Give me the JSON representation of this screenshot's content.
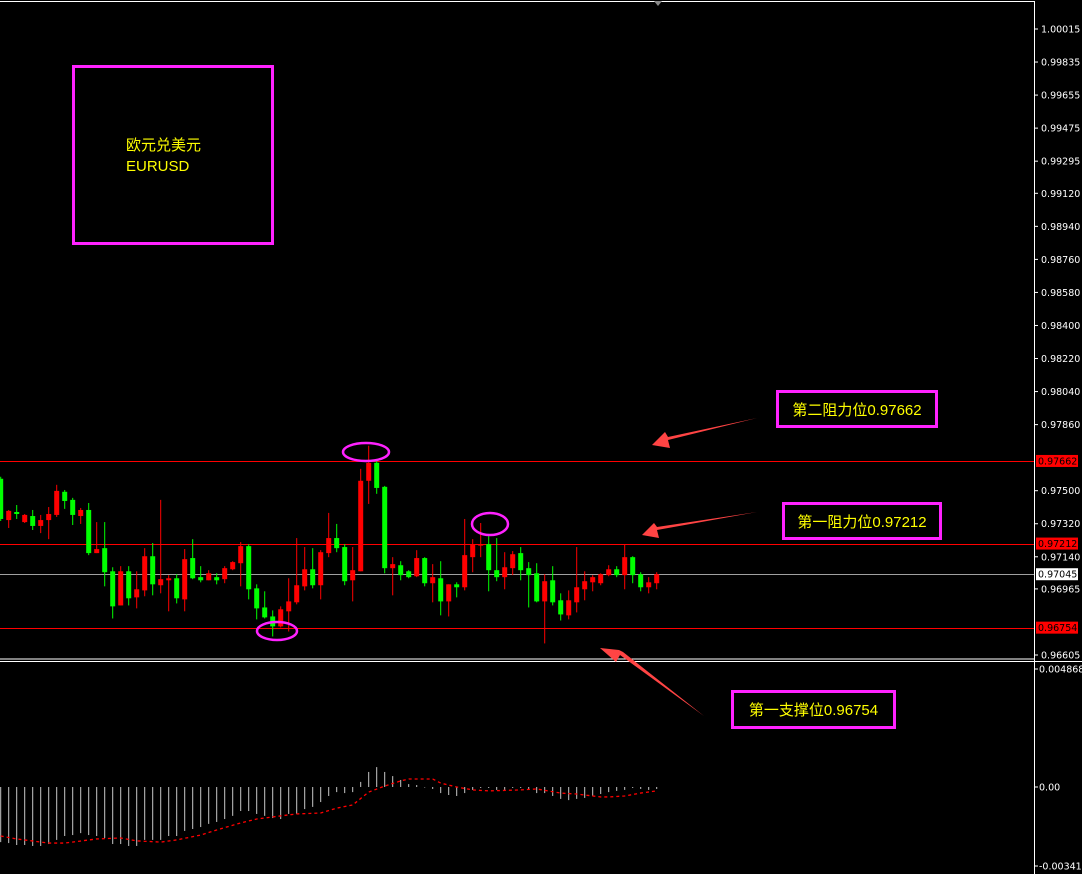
{
  "title_box": {
    "name_cn": "欧元兑美元",
    "symbol": "EURUSD"
  },
  "annotations": {
    "resistance2": "第二阻力位0.97662",
    "resistance1": "第一阻力位0.97212",
    "support1": "第一支撑位0.96754"
  },
  "colors": {
    "background": "#000000",
    "bull": "#ff0000",
    "bear": "#00ff00",
    "level_line": "#ff0000",
    "current_line": "#a0a0a0",
    "annotation_border": "#ff22ff",
    "annotation_text": "#ffff00",
    "arrow": "#ff4444",
    "histogram": "#c8c8c8",
    "signal": "#ff0000"
  },
  "chart_data": [
    {
      "type": "candlestick",
      "symbol": "EURUSD",
      "y_ticks": [
        "1.00015",
        "0.99835",
        "0.99655",
        "0.99475",
        "0.99295",
        "0.99120",
        "0.98940",
        "0.98760",
        "0.98580",
        "0.98400",
        "0.98220",
        "0.98040",
        "0.97860",
        "0.97500",
        "0.97320",
        "0.97140",
        "0.96965",
        "0.96605"
      ],
      "ylim": [
        0.96605,
        1.00015
      ],
      "levels": [
        {
          "label": "0.97662",
          "price": 0.97662,
          "kind": "resistance"
        },
        {
          "label": "0.97212",
          "price": 0.97212,
          "kind": "resistance"
        },
        {
          "label": "0.96754",
          "price": 0.96754,
          "kind": "support"
        }
      ],
      "current_price": {
        "label": "0.97045",
        "price": 0.97045
      },
      "highlighted_bars": [
        47,
        35,
        62
      ],
      "candles_ohlc": [
        [
          0.97565,
          0.97576,
          0.97335,
          0.97346
        ],
        [
          0.9734,
          0.97395,
          0.97297,
          0.9739
        ],
        [
          0.97384,
          0.97422,
          0.97346,
          0.97373
        ],
        [
          0.97329,
          0.97373,
          0.97324,
          0.97368
        ],
        [
          0.97362,
          0.97395,
          0.97286,
          0.97308
        ],
        [
          0.97308,
          0.97368,
          0.97269,
          0.9734
        ],
        [
          0.9734,
          0.97411,
          0.97236,
          0.97373
        ],
        [
          0.97368,
          0.97532,
          0.97357,
          0.97499
        ],
        [
          0.97494,
          0.97504,
          0.97401,
          0.97444
        ],
        [
          0.9745,
          0.97461,
          0.97313,
          0.97368
        ],
        [
          0.97362,
          0.97406,
          0.97319,
          0.97395
        ],
        [
          0.97395,
          0.97433,
          0.97149,
          0.9716
        ],
        [
          0.9716,
          0.97329,
          0.9716,
          0.97182
        ],
        [
          0.97187,
          0.97329,
          0.96979,
          0.97056
        ],
        [
          0.97061,
          0.97083,
          0.96804,
          0.9687
        ],
        [
          0.96875,
          0.97089,
          0.96875,
          0.97061
        ],
        [
          0.97061,
          0.97089,
          0.96875,
          0.96914
        ],
        [
          0.96919,
          0.97061,
          0.96859,
          0.96963
        ],
        [
          0.96957,
          0.97187,
          0.96925,
          0.97143
        ],
        [
          0.97143,
          0.97215,
          0.9693,
          0.9699
        ],
        [
          0.96985,
          0.9745,
          0.96941,
          0.97018
        ],
        [
          0.97012,
          0.9704,
          0.96843,
          0.97023
        ],
        [
          0.97023,
          0.97045,
          0.96886,
          0.96914
        ],
        [
          0.96908,
          0.97182,
          0.96843,
          0.97127
        ],
        [
          0.97133,
          0.97236,
          0.97018,
          0.97023
        ],
        [
          0.97029,
          0.97089,
          0.97001,
          0.97012
        ],
        [
          0.97012,
          0.97067,
          0.97012,
          0.9705
        ],
        [
          0.97029,
          0.9705,
          0.9699,
          0.97012
        ],
        [
          0.97018,
          0.97089,
          0.96996,
          0.97078
        ],
        [
          0.97072,
          0.97116,
          0.97067,
          0.97111
        ],
        [
          0.97105,
          0.9722,
          0.96979,
          0.97198
        ],
        [
          0.97198,
          0.97209,
          0.96908,
          0.96963
        ],
        [
          0.96968,
          0.9699,
          0.96799,
          0.96859
        ],
        [
          0.96864,
          0.96952,
          0.96804,
          0.9681
        ],
        [
          0.96815,
          0.96848,
          0.96706,
          0.96761
        ],
        [
          0.96761,
          0.9687,
          0.96755,
          0.96854
        ],
        [
          0.96843,
          0.97023,
          0.96733,
          0.96897
        ],
        [
          0.96892,
          0.97242,
          0.96881,
          0.96985
        ],
        [
          0.96979,
          0.97193,
          0.96957,
          0.97072
        ],
        [
          0.97072,
          0.97187,
          0.96968,
          0.96985
        ],
        [
          0.96985,
          0.97176,
          0.96908,
          0.97165
        ],
        [
          0.9716,
          0.97379,
          0.97138,
          0.97242
        ],
        [
          0.97242,
          0.97319,
          0.97165,
          0.97187
        ],
        [
          0.97193,
          0.97209,
          0.96985,
          0.97007
        ],
        [
          0.97012,
          0.97193,
          0.96897,
          0.97067
        ],
        [
          0.97061,
          0.97619,
          0.97061,
          0.97554
        ],
        [
          0.97554,
          0.97745,
          0.97428,
          0.97652
        ],
        [
          0.97652,
          0.97662,
          0.97483,
          0.97515
        ],
        [
          0.97521,
          0.97526,
          0.9705,
          0.97078
        ],
        [
          0.97078,
          0.97138,
          0.9693,
          0.971
        ],
        [
          0.97094,
          0.97116,
          0.97012,
          0.9704
        ],
        [
          0.97061,
          0.97067,
          0.97023,
          0.97029
        ],
        [
          0.97034,
          0.97176,
          0.97029,
          0.97133
        ],
        [
          0.97133,
          0.97138,
          0.96979,
          0.96996
        ],
        [
          0.96996,
          0.971,
          0.96892,
          0.97029
        ],
        [
          0.97023,
          0.97116,
          0.96821,
          0.96897
        ],
        [
          0.96897,
          0.9699,
          0.96815,
          0.9699
        ],
        [
          0.9699,
          0.97001,
          0.96919,
          0.96974
        ],
        [
          0.96974,
          0.97346,
          0.96957,
          0.97149
        ],
        [
          0.97138,
          0.97236,
          0.97056,
          0.97204
        ],
        [
          0.97204,
          0.97324,
          0.97138,
          0.97209
        ],
        [
          0.97209,
          0.97253,
          0.96952,
          0.97067
        ],
        [
          0.97067,
          0.97242,
          0.97007,
          0.97029
        ],
        [
          0.97029,
          0.97165,
          0.96963,
          0.97083
        ],
        [
          0.97078,
          0.97171,
          0.9704,
          0.97154
        ],
        [
          0.9716,
          0.97193,
          0.97012,
          0.97067
        ],
        [
          0.97078,
          0.97111,
          0.96864,
          0.9704
        ],
        [
          0.9705,
          0.97105,
          0.96892,
          0.96897
        ],
        [
          0.96897,
          0.97045,
          0.96668,
          0.97007
        ],
        [
          0.97012,
          0.97089,
          0.96875,
          0.96892
        ],
        [
          0.96903,
          0.96941,
          0.96793,
          0.96826
        ],
        [
          0.96821,
          0.96957,
          0.96799,
          0.96903
        ],
        [
          0.96892,
          0.97193,
          0.96837,
          0.96974
        ],
        [
          0.96963,
          0.97061,
          0.96903,
          0.97007
        ],
        [
          0.97001,
          0.9704,
          0.96952,
          0.97029
        ],
        [
          0.96996,
          0.9705,
          0.96985,
          0.97045
        ],
        [
          0.9704,
          0.97094,
          0.97034,
          0.97072
        ],
        [
          0.97072,
          0.97089,
          0.97029,
          0.9704
        ],
        [
          0.9704,
          0.97209,
          0.96963,
          0.97138
        ],
        [
          0.97138,
          0.97143,
          0.96996,
          0.9704
        ],
        [
          0.97045,
          0.97056,
          0.96952,
          0.96974
        ],
        [
          0.96974,
          0.97029,
          0.96941,
          0.97001
        ],
        [
          0.96996,
          0.97056,
          0.96963,
          0.97045
        ]
      ]
    },
    {
      "type": "bar+line",
      "indicator": "MACD",
      "y_ticks": [
        "0.004868",
        "0.00",
        "-0.003414"
      ],
      "ylim": [
        -0.003414,
        0.004868
      ],
      "histogram": [
        -0.00227,
        -0.00231,
        -0.00239,
        -0.00239,
        -0.00243,
        -0.00243,
        -0.00235,
        -0.00218,
        -0.00202,
        -0.00198,
        -0.0019,
        -0.00198,
        -0.00202,
        -0.0021,
        -0.00235,
        -0.00235,
        -0.00243,
        -0.00243,
        -0.00218,
        -0.00218,
        -0.00218,
        -0.00202,
        -0.00202,
        -0.00181,
        -0.00173,
        -0.00165,
        -0.00152,
        -0.00144,
        -0.00132,
        -0.00119,
        -0.00099,
        -0.00099,
        -0.00111,
        -0.00119,
        -0.00128,
        -0.00132,
        -0.00111,
        -0.00111,
        -0.00091,
        -0.00082,
        -0.00062,
        -0.00037,
        -0.00021,
        -0.00025,
        -0.00021,
        0.00021,
        0.00062,
        0.00082,
        0.00062,
        0.00045,
        0.00029,
        0.00012,
        8e-05,
        0,
        -8e-05,
        -0.00025,
        -0.00033,
        -0.00037,
        -0.00025,
        -0.00012,
        -4e-05,
        -4e-05,
        -0.00012,
        -0.00012,
        -4e-05,
        -4e-05,
        -8e-05,
        -0.00025,
        -0.00025,
        -0.00037,
        -0.00049,
        -0.00054,
        -0.00049,
        -0.00045,
        -0.00037,
        -0.00029,
        -0.00021,
        -0.00016,
        -0.00012,
        -4e-05,
        -8e-05,
        -0.00012,
        -8e-05
      ],
      "signal_points": [
        [
          1,
          -0.00202
        ],
        [
          3,
          -0.00214
        ],
        [
          7,
          -0.00231
        ],
        [
          9,
          -0.00231
        ],
        [
          13,
          -0.00214
        ],
        [
          16,
          -0.0021
        ],
        [
          18,
          -0.00222
        ],
        [
          21,
          -0.00227
        ],
        [
          23,
          -0.00218
        ],
        [
          26,
          -0.00198
        ],
        [
          28,
          -0.00177
        ],
        [
          31,
          -0.00148
        ],
        [
          33,
          -0.00132
        ],
        [
          36,
          -0.00119
        ],
        [
          38,
          -0.00111
        ],
        [
          41,
          -0.00107
        ],
        [
          43,
          -0.00087
        ],
        [
          45,
          -0.00074
        ],
        [
          47,
          -0.00021
        ],
        [
          49,
          4e-05
        ],
        [
          51,
          0.00025
        ],
        [
          52,
          0.00033
        ],
        [
          55,
          0.00033
        ],
        [
          56,
          0.00016
        ],
        [
          58,
          0
        ],
        [
          60,
          -0.00012
        ],
        [
          62,
          -0.00016
        ],
        [
          66,
          -0.00012
        ],
        [
          68,
          -8e-05
        ],
        [
          71,
          -0.00025
        ],
        [
          73,
          -0.00029
        ],
        [
          76,
          -0.00041
        ],
        [
          77,
          -0.00041
        ],
        [
          79,
          -0.00037
        ],
        [
          81,
          -0.00025
        ],
        [
          83,
          -0.00016
        ]
      ]
    }
  ]
}
